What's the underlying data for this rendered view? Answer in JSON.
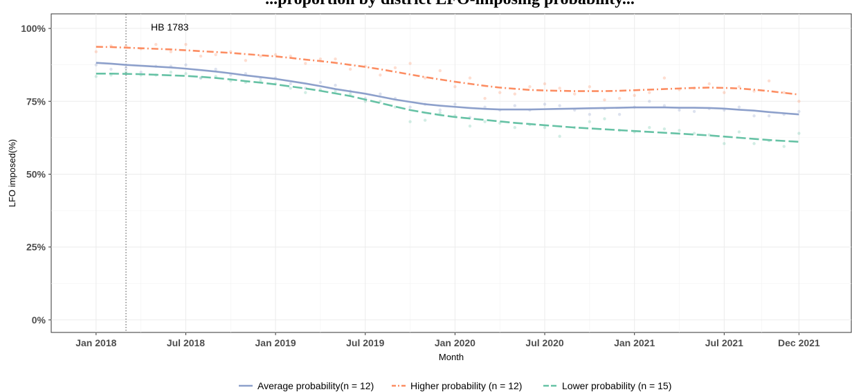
{
  "chart_data": {
    "type": "line",
    "title": "...proportion by district LFO-imposing probability...",
    "xlabel": "Month",
    "ylabel": "LFO imposed(%)",
    "ylim": [
      0,
      100
    ],
    "y_ticks": [
      "0%",
      "25%",
      "50%",
      "75%",
      "100%"
    ],
    "y_tick_values": [
      0,
      25,
      50,
      75,
      100
    ],
    "x_ticks": [
      "Jan 2018",
      "Jul 2018",
      "Jan 2019",
      "Jul 2019",
      "Jan 2020",
      "Jul 2020",
      "Jan 2021",
      "Jul 2021",
      "Dec 2021"
    ],
    "x_tick_months": [
      0,
      6,
      12,
      18,
      24,
      30,
      36,
      42,
      47
    ],
    "xlim_months": [
      -3.0,
      50.5
    ],
    "grid": true,
    "legend_position": "bottom",
    "annotation": {
      "text": "HB 1783",
      "x_month": 2
    },
    "x": [
      "2018-01",
      "2018-02",
      "2018-03",
      "2018-04",
      "2018-05",
      "2018-06",
      "2018-07",
      "2018-08",
      "2018-09",
      "2018-10",
      "2018-11",
      "2018-12",
      "2019-01",
      "2019-02",
      "2019-03",
      "2019-04",
      "2019-05",
      "2019-06",
      "2019-07",
      "2019-08",
      "2019-09",
      "2019-10",
      "2019-11",
      "2019-12",
      "2020-01",
      "2020-02",
      "2020-03",
      "2020-04",
      "2020-05",
      "2020-06",
      "2020-07",
      "2020-08",
      "2020-09",
      "2020-10",
      "2020-11",
      "2020-12",
      "2021-01",
      "2021-02",
      "2021-03",
      "2021-04",
      "2021-05",
      "2021-06",
      "2021-07",
      "2021-08",
      "2021-09",
      "2021-10",
      "2021-11",
      "2021-12"
    ],
    "series": [
      {
        "name": "Average probability(n = 12)",
        "color": "#8da0cb",
        "dash": "solid",
        "trend": [
          88.2,
          87.9,
          87.5,
          87.2,
          86.9,
          86.6,
          86.2,
          85.7,
          85.2,
          84.6,
          83.9,
          83.3,
          82.7,
          81.9,
          81.1,
          80.2,
          79.2,
          78.4,
          77.6,
          76.6,
          75.6,
          74.8,
          74.0,
          73.5,
          73.1,
          72.7,
          72.4,
          72.2,
          72.2,
          72.2,
          72.3,
          72.4,
          72.5,
          72.6,
          72.7,
          72.8,
          72.9,
          72.9,
          72.9,
          72.8,
          72.8,
          72.7,
          72.5,
          72.1,
          71.8,
          71.3,
          70.9,
          70.5
        ],
        "points": [
          87.5,
          86.0,
          86.5,
          85.0,
          87.0,
          87.0,
          87.5,
          83.0,
          86.0,
          84.0,
          84.5,
          83.0,
          83.0,
          81.0,
          79.5,
          81.5,
          80.5,
          78.5,
          76.0,
          77.5,
          76.0,
          73.0,
          74.0,
          72.0,
          74.0,
          69.5,
          73.0,
          72.0,
          73.5,
          72.0,
          74.0,
          73.5,
          72.0,
          70.5,
          72.5,
          70.5,
          73.0,
          75.0,
          73.5,
          72.0,
          71.5,
          72.5,
          72.0,
          73.0,
          70.0,
          70.0,
          70.5,
          71.5
        ]
      },
      {
        "name": "Higher probability (n = 12)",
        "color": "#fc8d62",
        "dash": "dashdot",
        "trend": [
          93.7,
          93.6,
          93.4,
          93.2,
          93.0,
          92.8,
          92.5,
          92.2,
          91.9,
          91.6,
          91.2,
          90.8,
          90.4,
          89.9,
          89.3,
          88.8,
          88.2,
          87.5,
          86.8,
          86.0,
          85.1,
          84.2,
          83.3,
          82.5,
          81.7,
          81.0,
          80.3,
          79.7,
          79.3,
          78.9,
          78.7,
          78.6,
          78.5,
          78.5,
          78.5,
          78.6,
          78.8,
          79.0,
          79.2,
          79.4,
          79.6,
          79.7,
          79.6,
          79.4,
          79.0,
          78.5,
          77.9,
          77.3
        ],
        "points": [
          92.0,
          94.0,
          94.0,
          93.0,
          94.5,
          92.0,
          94.5,
          90.5,
          91.0,
          92.0,
          89.0,
          90.5,
          91.0,
          90.5,
          88.0,
          89.5,
          89.5,
          86.0,
          87.0,
          84.0,
          86.5,
          88.0,
          83.0,
          85.5,
          80.0,
          83.0,
          76.0,
          78.0,
          77.5,
          80.0,
          81.0,
          79.5,
          77.5,
          80.0,
          75.5,
          76.0,
          77.0,
          78.0,
          83.0,
          79.0,
          79.5,
          81.0,
          78.0,
          80.0,
          78.5,
          82.0,
          78.0,
          75.0
        ]
      },
      {
        "name": "Lower probability (n = 15)",
        "color": "#66c2a5",
        "dash": "longdash",
        "trend": [
          84.5,
          84.5,
          84.4,
          84.3,
          84.1,
          83.9,
          83.7,
          83.4,
          83.0,
          82.5,
          81.9,
          81.4,
          80.8,
          80.1,
          79.4,
          78.6,
          77.7,
          76.8,
          75.6,
          74.4,
          73.2,
          72.0,
          71.1,
          70.3,
          69.6,
          69.1,
          68.6,
          68.1,
          67.6,
          67.2,
          66.8,
          66.4,
          66.0,
          65.7,
          65.4,
          65.1,
          64.8,
          64.5,
          64.2,
          63.9,
          63.6,
          63.3,
          62.9,
          62.5,
          62.1,
          61.7,
          61.4,
          61.1
        ],
        "points": [
          83.5,
          84.0,
          85.0,
          84.0,
          84.0,
          85.0,
          84.5,
          83.0,
          83.5,
          82.0,
          81.5,
          82.0,
          81.0,
          79.5,
          78.0,
          79.0,
          78.5,
          77.5,
          75.0,
          75.0,
          73.0,
          68.0,
          68.5,
          71.0,
          70.0,
          66.5,
          68.0,
          67.5,
          66.0,
          67.0,
          66.0,
          63.0,
          66.0,
          68.0,
          69.0,
          65.0,
          64.5,
          66.0,
          65.5,
          65.0,
          64.0,
          63.5,
          60.5,
          64.5,
          60.5,
          61.5,
          59.5,
          64.0
        ]
      }
    ]
  }
}
